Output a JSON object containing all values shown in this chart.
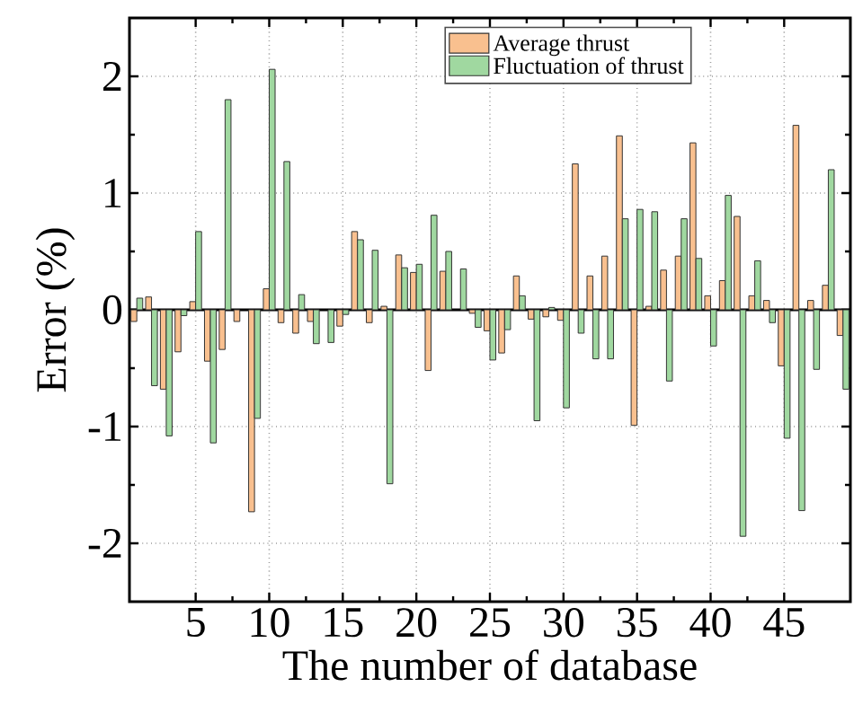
{
  "chart_data": {
    "type": "bar",
    "xlabel": "The number of database",
    "ylabel": "Error (%)",
    "x": [
      1,
      2,
      3,
      4,
      5,
      6,
      7,
      8,
      9,
      10,
      11,
      12,
      13,
      14,
      15,
      16,
      17,
      18,
      19,
      20,
      21,
      22,
      23,
      24,
      25,
      26,
      27,
      28,
      29,
      30,
      31,
      32,
      33,
      34,
      35,
      36,
      37,
      38,
      39,
      40,
      41,
      42,
      43,
      44,
      45,
      46,
      47,
      48,
      49
    ],
    "xlim": [
      0.5,
      49.5
    ],
    "xticks": [
      5,
      10,
      15,
      20,
      25,
      30,
      35,
      40,
      45
    ],
    "ylim": [
      -2.5,
      2.5
    ],
    "yticks": [
      -2,
      -1,
      0,
      1,
      2
    ],
    "grid": true,
    "legend": "top right",
    "series": [
      {
        "name": "Average thrust",
        "color": "#f9c08f",
        "values": [
          -0.1,
          0.11,
          -0.68,
          -0.36,
          0.07,
          -0.44,
          -0.34,
          -0.1,
          -1.73,
          0.18,
          -0.11,
          -0.2,
          -0.1,
          null,
          -0.14,
          0.67,
          -0.11,
          0.03,
          0.47,
          0.32,
          -0.52,
          0.33,
          null,
          -0.03,
          -0.18,
          -0.37,
          0.29,
          -0.08,
          -0.06,
          -0.09,
          1.25,
          0.29,
          0.46,
          1.49,
          -0.99,
          0.03,
          0.34,
          0.46,
          1.43,
          0.12,
          0.25,
          0.8,
          0.12,
          0.08,
          -0.48,
          1.58,
          0.08,
          0.21,
          -0.22
        ]
      },
      {
        "name": "Fluctuation of thrust",
        "color": "#a0d8a0",
        "values": [
          0.1,
          -0.65,
          -1.08,
          -0.05,
          0.67,
          -1.14,
          1.8,
          null,
          -0.93,
          2.06,
          1.27,
          0.13,
          -0.29,
          -0.28,
          -0.04,
          0.6,
          0.51,
          -1.49,
          0.36,
          0.39,
          0.81,
          0.5,
          0.35,
          -0.15,
          -0.43,
          -0.17,
          0.12,
          -0.95,
          0.02,
          -0.84,
          -0.2,
          -0.42,
          -0.42,
          0.78,
          0.86,
          0.84,
          -0.61,
          0.78,
          0.44,
          -0.31,
          0.98,
          -1.94,
          0.42,
          -0.11,
          -1.1,
          -1.72,
          -0.51,
          1.2,
          -0.68
        ]
      }
    ]
  }
}
